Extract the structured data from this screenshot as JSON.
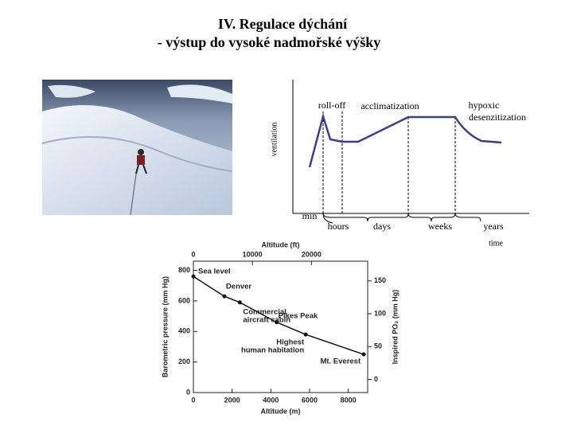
{
  "title": [
    "IV. Regulace dýchání",
    "- výstup do vysoké nadmořské výšky"
  ],
  "chart_data": [
    {
      "type": "schematic",
      "ylabel": "ventilation",
      "xlabel": "time",
      "origin_label": "min",
      "categories": [
        "hours",
        "days",
        "weeks",
        "years"
      ],
      "annotations": [
        "roll-off",
        "acclimatization",
        [
          "hypoxic",
          "desenzitization"
        ]
      ]
    },
    {
      "type": "line",
      "xlabel": "Altitude (m)",
      "x2label": "Altitude (ft)",
      "ylabel": "Barometric pressure (mm Hg)",
      "y2label": "Inspired PO₂ (mm Hg)",
      "x": [
        0,
        1600,
        2400,
        4300,
        5800,
        8800
      ],
      "values": [
        760,
        630,
        590,
        460,
        380,
        250
      ],
      "point_labels": [
        [
          "Sea level"
        ],
        [
          "Denver"
        ],
        [
          "Commercial",
          "aircraft cabin"
        ],
        [
          "Pikes Peak"
        ],
        [
          "Highest",
          "human habitation"
        ],
        [
          "Mt. Everest"
        ]
      ],
      "color": "#111111",
      "xlim": [
        0,
        9000
      ],
      "xticks": [
        0,
        2000,
        4000,
        6000,
        8000
      ],
      "x2lim": [
        0,
        29528
      ],
      "x2ticks": [
        0,
        10000,
        20000
      ],
      "ylim": [
        0,
        860
      ],
      "yticks": [
        0,
        200,
        400,
        600,
        800
      ],
      "y2lim": [
        -20,
        180
      ],
      "y2ticks": [
        0,
        50,
        100,
        150
      ]
    }
  ]
}
